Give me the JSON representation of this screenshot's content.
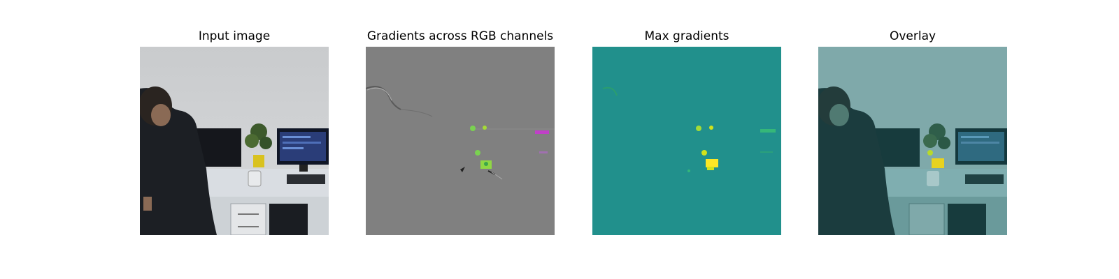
{
  "figure": {
    "panels": [
      {
        "title": "Input image"
      },
      {
        "title": "Gradients across RGB channels"
      },
      {
        "title": "Max gradients"
      },
      {
        "title": "Overlay"
      }
    ]
  },
  "colors": {
    "gradient_gray": "#808080",
    "max_grad_background": "#21908c",
    "overlay_tint": "#21908c",
    "highlight_yellow": "#fde725",
    "highlight_green": "#7ad151"
  }
}
